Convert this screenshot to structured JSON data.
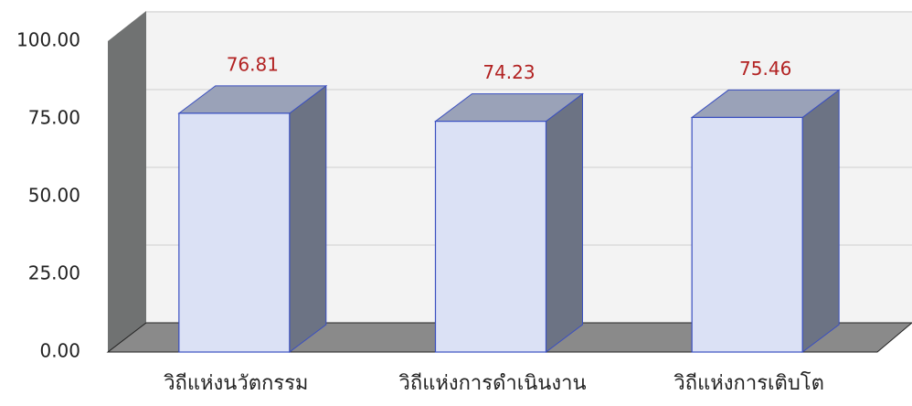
{
  "chart_data": {
    "type": "bar3d",
    "categories": [
      "วิถีแห่งนวัตกรรม",
      "วิถีแห่งการดำเนินงาน",
      "วิถีแห่งการเติบโต"
    ],
    "values": [
      76.81,
      74.23,
      75.46
    ],
    "color": "#dbe1f5",
    "ylim": [
      0,
      100
    ],
    "yticks": [
      {
        "value": 0,
        "label": "0.00"
      },
      {
        "value": 25,
        "label": "25.00"
      },
      {
        "value": 50,
        "label": "50.00"
      },
      {
        "value": 75,
        "label": "75.00"
      },
      {
        "value": 100,
        "label": "100.00"
      }
    ],
    "grid": true
  }
}
